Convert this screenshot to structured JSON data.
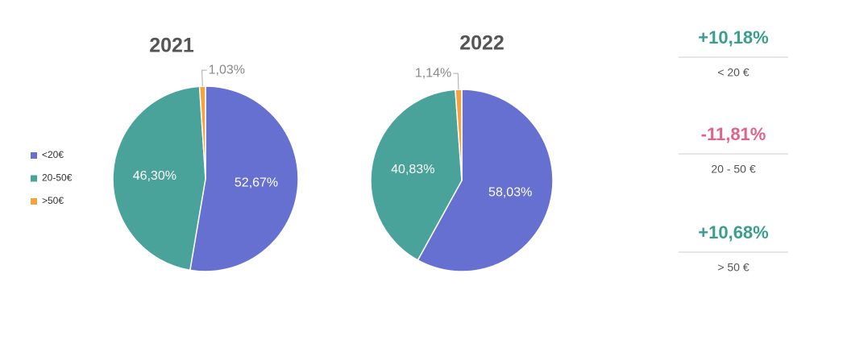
{
  "chart_data": [
    {
      "type": "pie",
      "title": "2021",
      "categories": [
        "<20€",
        "20-50€",
        ">50€"
      ],
      "values": [
        52.67,
        46.3,
        1.03
      ],
      "value_labels": [
        "52,67%",
        "46,30%",
        "1,03%"
      ],
      "colors": [
        "#6670d0",
        "#4aa39a",
        "#f0a540"
      ],
      "legend": "left"
    },
    {
      "type": "pie",
      "title": "2022",
      "values": [
        58.03,
        40.83,
        1.14
      ],
      "value_labels": [
        "58,03%",
        "40,83%",
        "1,14%"
      ],
      "colors": [
        "#6670d0",
        "#4aa39a",
        "#f0a540"
      ]
    }
  ],
  "changes": [
    {
      "value": 10.18,
      "value_label": "+10,18%",
      "label": "< 20 €",
      "color": "#3a9e8f"
    },
    {
      "value": -11.81,
      "value_label": "-11,81%",
      "label": "20 - 50 €",
      "color": "#e0648a"
    },
    {
      "value": 10.68,
      "value_label": "+10,68%",
      "label": "> 50 €",
      "color": "#3a9e8f"
    }
  ]
}
